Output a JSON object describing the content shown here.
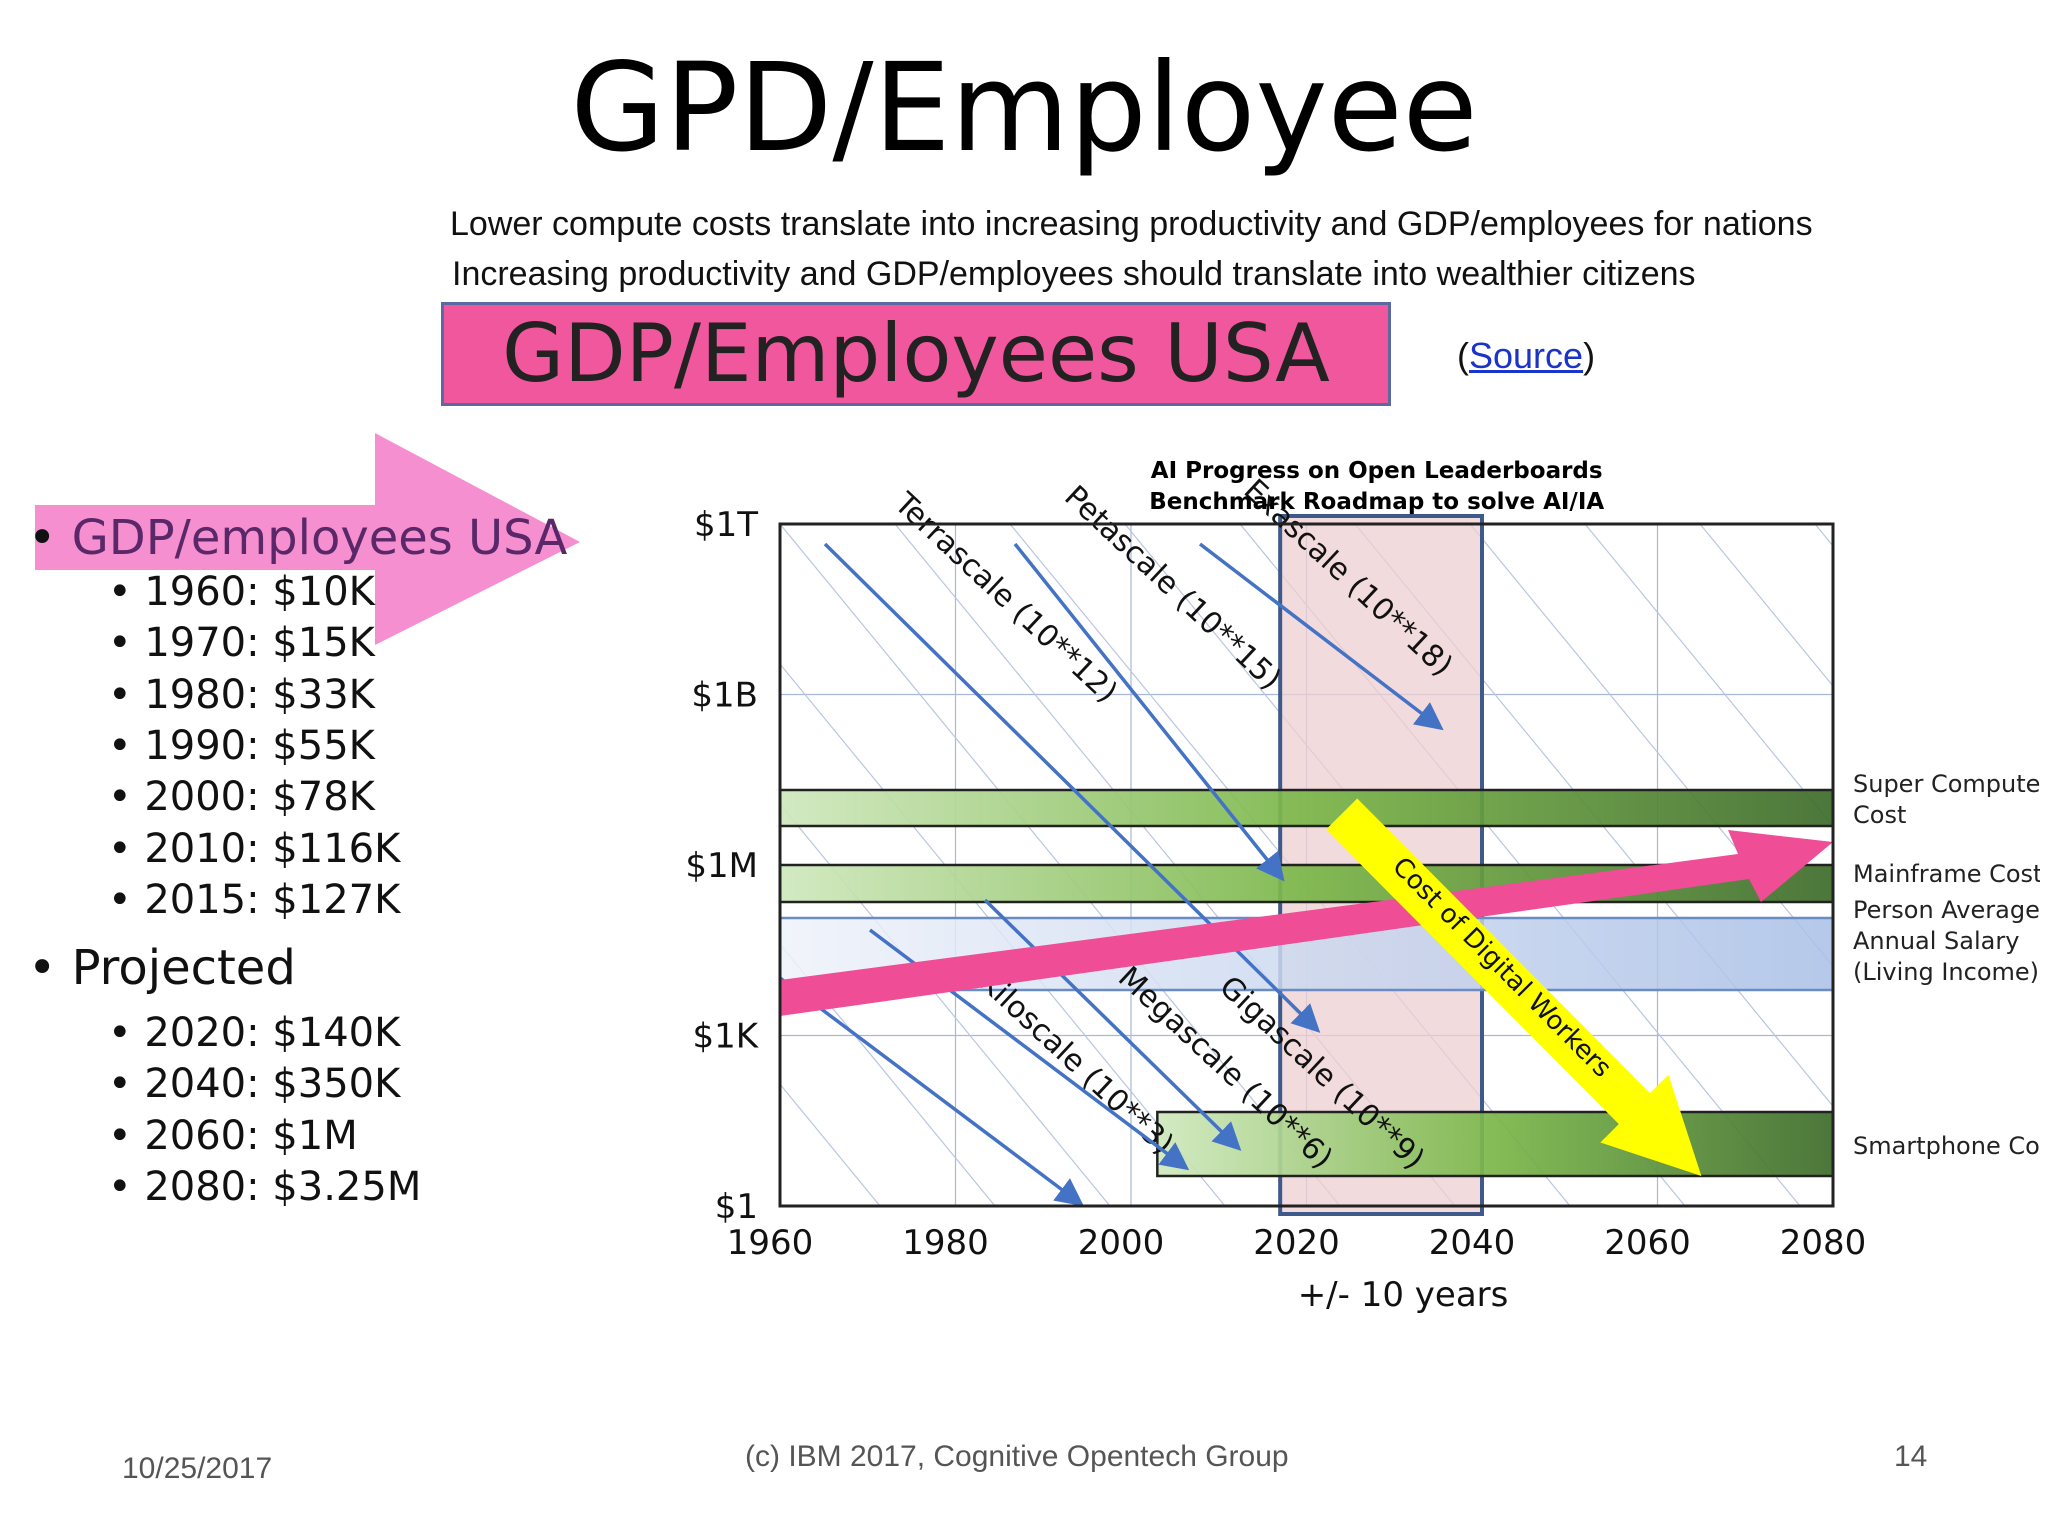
{
  "slide": {
    "title": "GPD/Employee",
    "subtitle_lines": [
      "Lower compute costs translate into increasing productivity and GDP/employees for nations",
      "Increasing productivity and GDP/employees should translate into wealthier citizens"
    ],
    "banner": "GDP/Employees USA",
    "source_open": "(",
    "source_link": "Source",
    "source_close": ")",
    "bullets": {
      "main": "GDP/employees USA",
      "history": [
        "1960: $10K",
        "1970: $15K",
        "1980: $33K",
        "1990: $55K",
        "2000: $78K",
        "2010: $116K",
        "2015: $127K"
      ],
      "projected_label": "Projected",
      "projected": [
        "2020: $140K",
        "2040: $350K",
        "2060:  $1M",
        "2080: $3.25M"
      ]
    },
    "footer": {
      "date": "10/25/2017",
      "copyright": "(c) IBM 2017, Cognitive Opentech Group",
      "page": "14"
    },
    "colors": {
      "banner": "#f0579c",
      "arrow": "#f58fd0",
      "link": "#1a33c8"
    }
  },
  "chart_data": {
    "type": "line",
    "title_lines": [
      "AI Progress on Open Leaderboards",
      "Benchmark Roadmap to solve AI/IA"
    ],
    "xlabel": "+/- 10 years",
    "xlim": [
      1960,
      2080
    ],
    "x_ticks": [
      1960,
      1980,
      2000,
      2020,
      2040,
      2060,
      2080
    ],
    "y_scale": "log",
    "y_ticks": [
      {
        "label": "$1T",
        "value": 1000000000000.0
      },
      {
        "label": "$1B",
        "value": 1000000000.0
      },
      {
        "label": "$1M",
        "value": 1000000.0
      },
      {
        "label": "$1K",
        "value": 1000.0
      },
      {
        "label": "$1",
        "value": 1
      }
    ],
    "grid": true,
    "highlight_band": {
      "x": [
        2017,
        2040
      ]
    },
    "scale_lines": [
      {
        "name": "Kiloscale (10**3)"
      },
      {
        "name": "Megascale (10**6)"
      },
      {
        "name": "Gigascale (10**9)"
      },
      {
        "name": "Terrascale (10**12)"
      },
      {
        "name": "Petascale (10**15)"
      },
      {
        "name": "Exascale (10**18)"
      }
    ],
    "cost_bands": [
      {
        "name": "Super Computer Cost",
        "x": [
          1960,
          2080
        ]
      },
      {
        "name": "Mainframe Cost",
        "x": [
          1960,
          2080
        ]
      },
      {
        "name": "Person Average Annual Salary (Living Income)",
        "x": [
          1960,
          2080
        ]
      },
      {
        "name": "Smartphone Cost",
        "x": [
          2003,
          2080
        ]
      }
    ],
    "trend_arrows": [
      {
        "name": "GDP/employee trend"
      },
      {
        "name": "Cost of Digital Workers"
      }
    ],
    "series_colors": {
      "scale_line": "#4472c4",
      "band_green": "#7ab648",
      "band_blue": "#a9bfe6",
      "highlight": "#eecfd0",
      "gdp_arrow": "#ef4d96",
      "digital_workers": "#ffff00"
    }
  }
}
